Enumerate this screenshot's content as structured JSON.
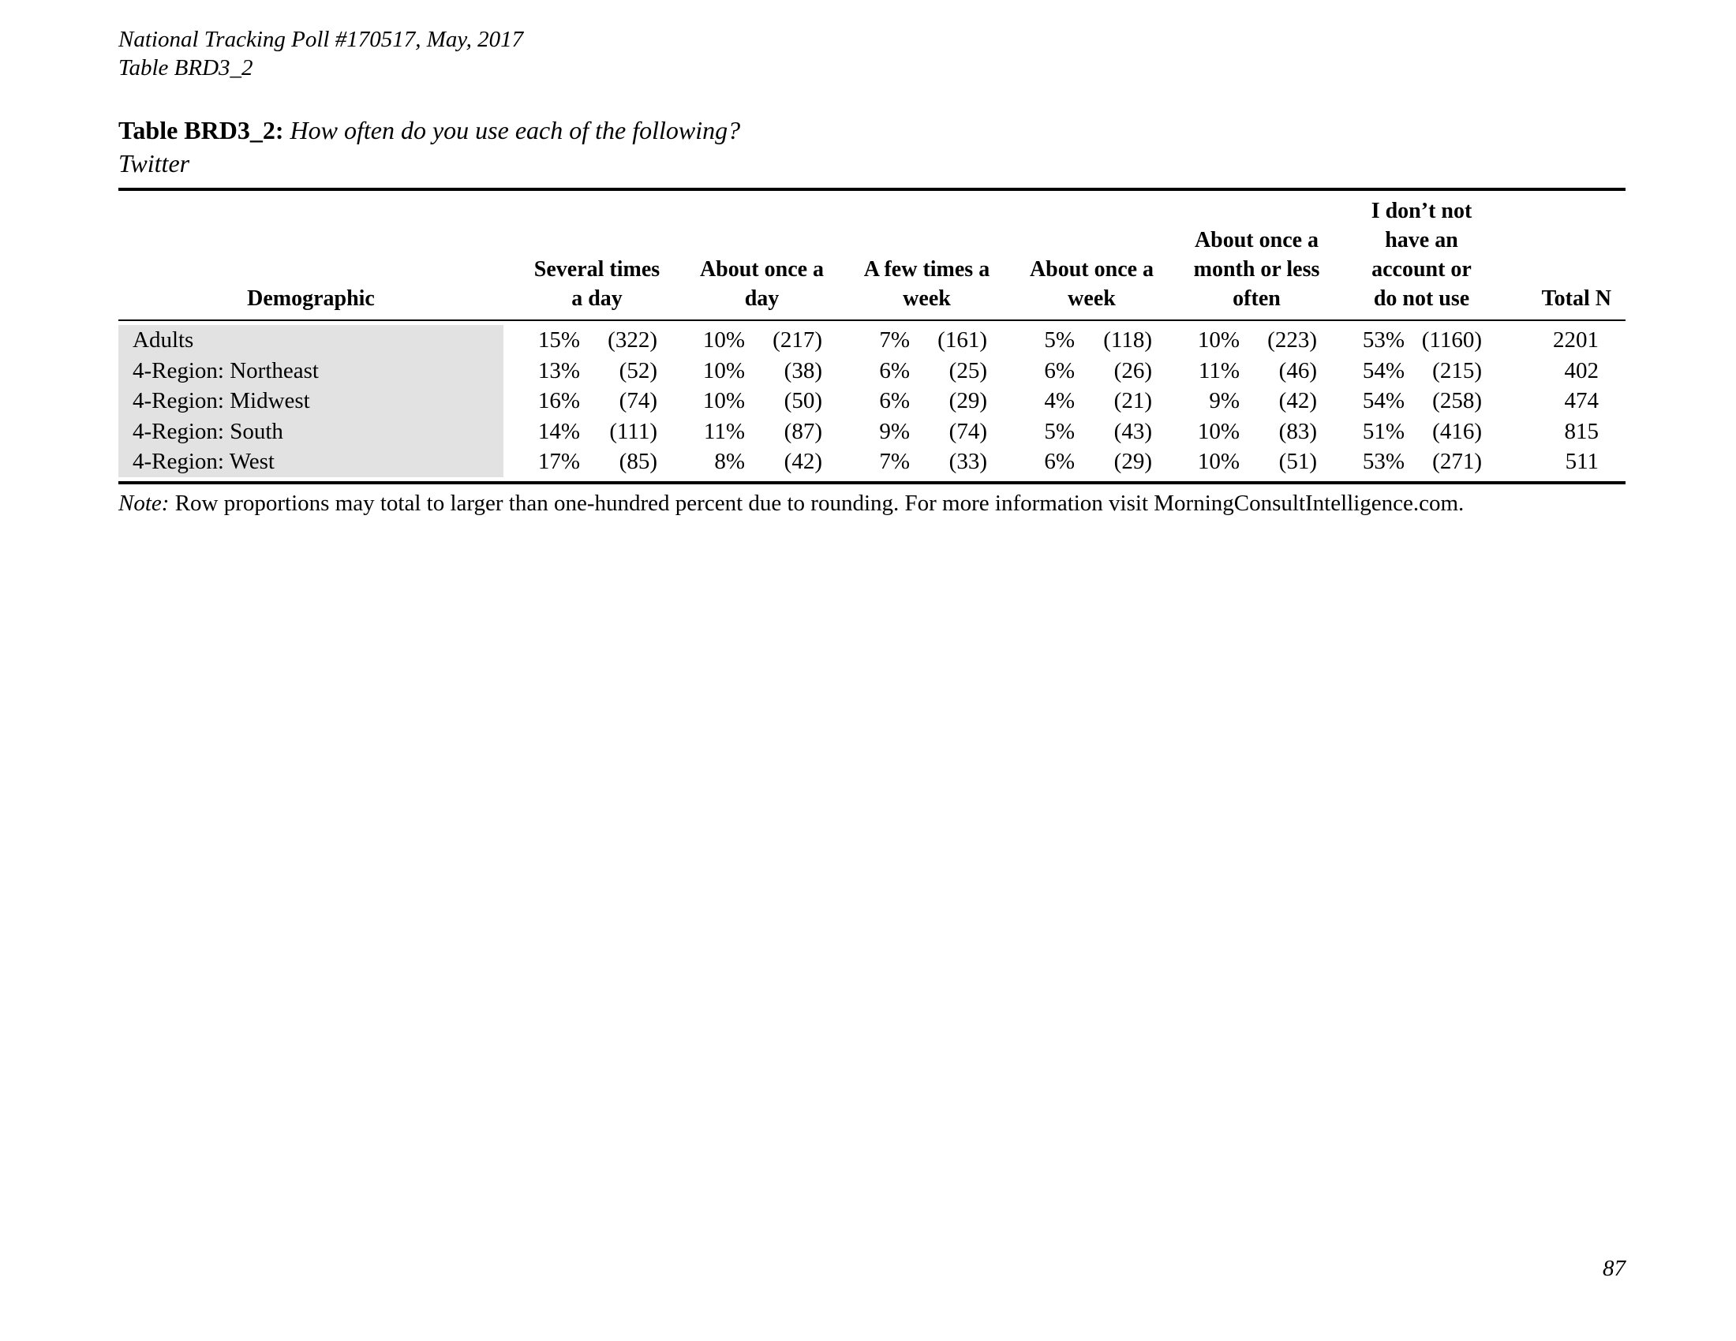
{
  "page": {
    "top_left_line1": "National Tracking Poll #170517, May, 2017",
    "top_left_line2": "Table BRD3_2",
    "page_number": "87"
  },
  "title": {
    "label": "Table BRD3_2:",
    "question": "How often do you use each of the following?",
    "subject": "Twitter"
  },
  "note": {
    "label": "Note:",
    "text": "Row proportions may total to larger than one-hundred percent due to rounding. For more information visit MorningConsultIntelligence.com."
  },
  "table": {
    "headers": [
      "Demographic",
      "Several times\na day",
      "About once a\nday",
      "A few times a\nweek",
      "About once a\nweek",
      "About once a\nmonth or less\noften",
      "I don’t not\nhave an\naccount or\ndo not use",
      "Total N"
    ],
    "rows": [
      {
        "demographic": "Adults",
        "values": [
          {
            "pct": "15%",
            "n": "(322)"
          },
          {
            "pct": "10%",
            "n": "(217)"
          },
          {
            "pct": "7%",
            "n": "(161)"
          },
          {
            "pct": "5%",
            "n": "(118)"
          },
          {
            "pct": "10%",
            "n": "(223)"
          },
          {
            "pct": "53%",
            "n": "(1160)"
          }
        ],
        "total_n": "2201"
      },
      {
        "demographic": "4-Region: Northeast",
        "values": [
          {
            "pct": "13%",
            "n": "(52)"
          },
          {
            "pct": "10%",
            "n": "(38)"
          },
          {
            "pct": "6%",
            "n": "(25)"
          },
          {
            "pct": "6%",
            "n": "(26)"
          },
          {
            "pct": "11%",
            "n": "(46)"
          },
          {
            "pct": "54%",
            "n": "(215)"
          }
        ],
        "total_n": "402"
      },
      {
        "demographic": "4-Region: Midwest",
        "values": [
          {
            "pct": "16%",
            "n": "(74)"
          },
          {
            "pct": "10%",
            "n": "(50)"
          },
          {
            "pct": "6%",
            "n": "(29)"
          },
          {
            "pct": "4%",
            "n": "(21)"
          },
          {
            "pct": "9%",
            "n": "(42)"
          },
          {
            "pct": "54%",
            "n": "(258)"
          }
        ],
        "total_n": "474"
      },
      {
        "demographic": "4-Region: South",
        "values": [
          {
            "pct": "14%",
            "n": "(111)"
          },
          {
            "pct": "11%",
            "n": "(87)"
          },
          {
            "pct": "9%",
            "n": "(74)"
          },
          {
            "pct": "5%",
            "n": "(43)"
          },
          {
            "pct": "10%",
            "n": "(83)"
          },
          {
            "pct": "51%",
            "n": "(416)"
          }
        ],
        "total_n": "815"
      },
      {
        "demographic": "4-Region: West",
        "values": [
          {
            "pct": "17%",
            "n": "(85)"
          },
          {
            "pct": "8%",
            "n": "(42)"
          },
          {
            "pct": "7%",
            "n": "(33)"
          },
          {
            "pct": "6%",
            "n": "(29)"
          },
          {
            "pct": "10%",
            "n": "(51)"
          },
          {
            "pct": "53%",
            "n": "(271)"
          }
        ],
        "total_n": "511"
      }
    ]
  },
  "colors": {
    "row_highlight": "#e2e2e2",
    "text": "#000000",
    "rule": "#000000"
  }
}
